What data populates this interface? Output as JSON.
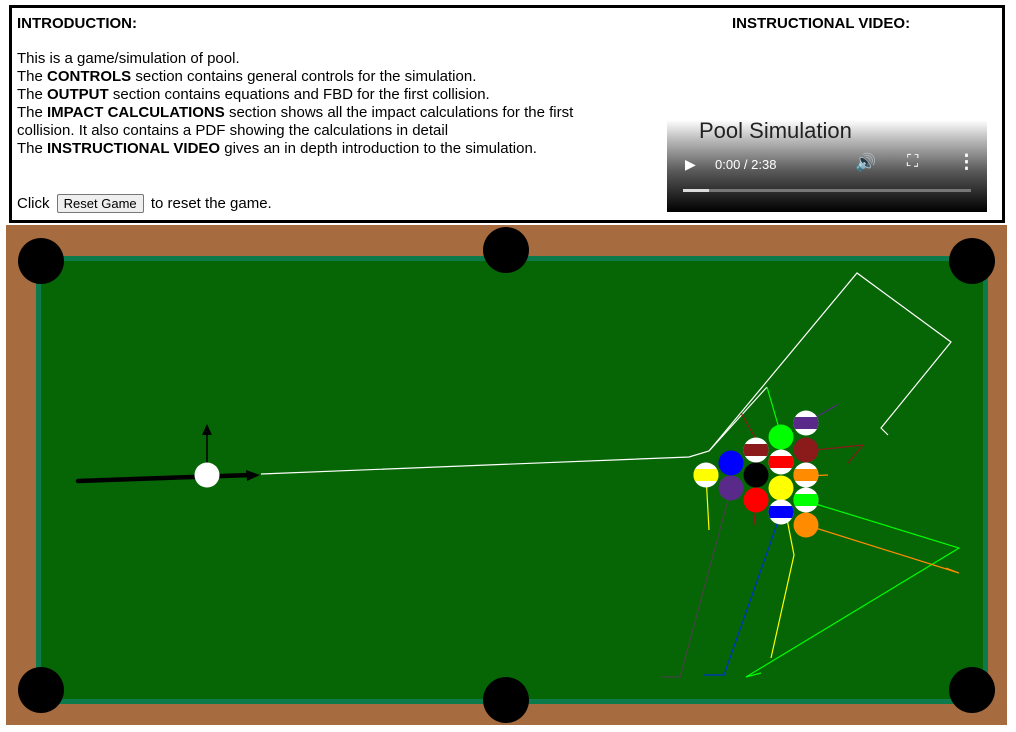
{
  "intro": {
    "heading": "INTRODUCTION:",
    "line1": "This is a game/simulation of pool.",
    "line2_bold": "CONTROLS",
    "line2_rest": " section contains general controls for the simulation.",
    "line3_bold": "OUTPUT",
    "line3_rest": " section contains equations and FBD for the first collision.",
    "line4_bold": "IMPACT CALCULATIONS",
    "line4_rest": " section shows all the impact calculations for the first collision. It also contains a PDF showing the calculations in detail",
    "line5_bold": "INSTRUCTIONAL VIDEO",
    "line5_rest": " gives an in depth introduction to the simulation.",
    "prefix": "The ",
    "click_prefix": "Click",
    "reset_label": "Reset Game",
    "click_suffix": "to reset the game."
  },
  "video": {
    "heading": "INSTRUCTIONAL VIDEO:",
    "title": "Pool Simulation",
    "time": "0:00 / 2:38",
    "progress": 0.09
  },
  "table": {
    "colors": {
      "rail": "#a66b3f",
      "felt": "#066505",
      "cushion": "#0c7a4a",
      "pocket": "#000000",
      "cue_ball": "#ffffff",
      "trail": "#ffffff"
    },
    "pocket_names": [
      "top-left",
      "top-middle",
      "top-right",
      "bottom-left",
      "bottom-middle",
      "bottom-right"
    ]
  }
}
